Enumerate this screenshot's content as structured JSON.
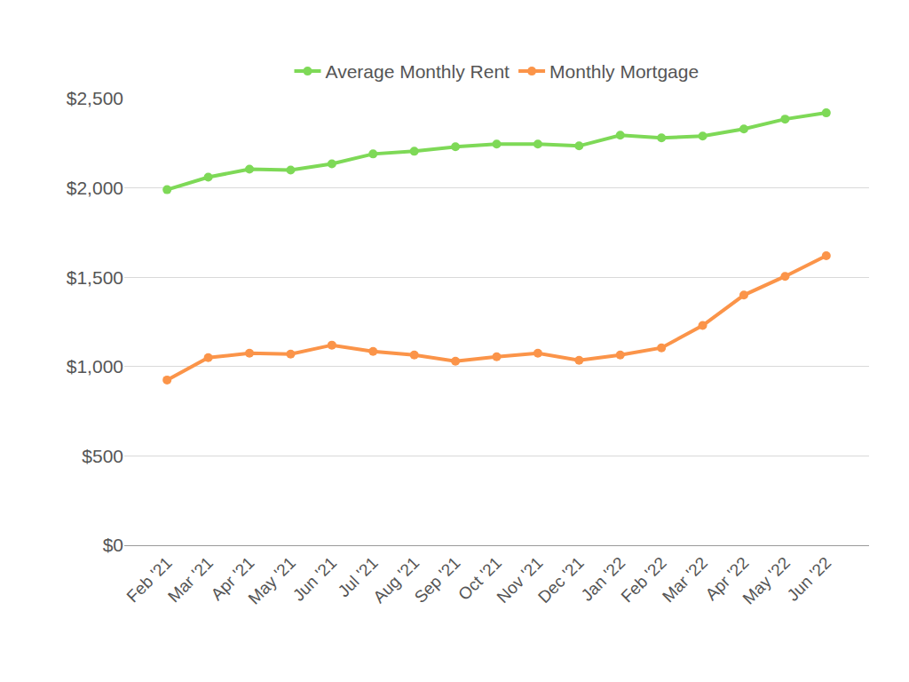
{
  "chart_data": {
    "type": "line",
    "categories": [
      "Feb '21",
      "Mar '21",
      "Apr '21",
      "May '21",
      "Jun '21",
      "Jul '21",
      "Aug '21",
      "Sep '21",
      "Oct '21",
      "Nov '21",
      "Dec '21",
      "Jan '22",
      "Feb '22",
      "Mar '22",
      "Apr '22",
      "May '22",
      "Jun '22"
    ],
    "series": [
      {
        "name": "Average Monthly Rent",
        "color": "#7ed957",
        "values": [
          1990,
          2060,
          2105,
          2100,
          2135,
          2190,
          2205,
          2230,
          2245,
          2245,
          2235,
          2295,
          2280,
          2290,
          2330,
          2385,
          2420
        ]
      },
      {
        "name": "Monthly Mortgage",
        "color": "#fb9449",
        "values": [
          925,
          1050,
          1075,
          1070,
          1120,
          1085,
          1065,
          1030,
          1055,
          1075,
          1035,
          1065,
          1105,
          1230,
          1400,
          1505,
          1620
        ]
      }
    ],
    "ylim": [
      0,
      2500
    ],
    "yticks": [
      {
        "value": 0,
        "label": "$0"
      },
      {
        "value": 500,
        "label": "$500"
      },
      {
        "value": 1000,
        "label": "$1,000"
      },
      {
        "value": 1500,
        "label": "$1,500"
      },
      {
        "value": 2000,
        "label": "$2,000"
      },
      {
        "value": 2500,
        "label": "$2,500"
      }
    ],
    "grid": true,
    "legend": "top",
    "marker": "circle"
  }
}
